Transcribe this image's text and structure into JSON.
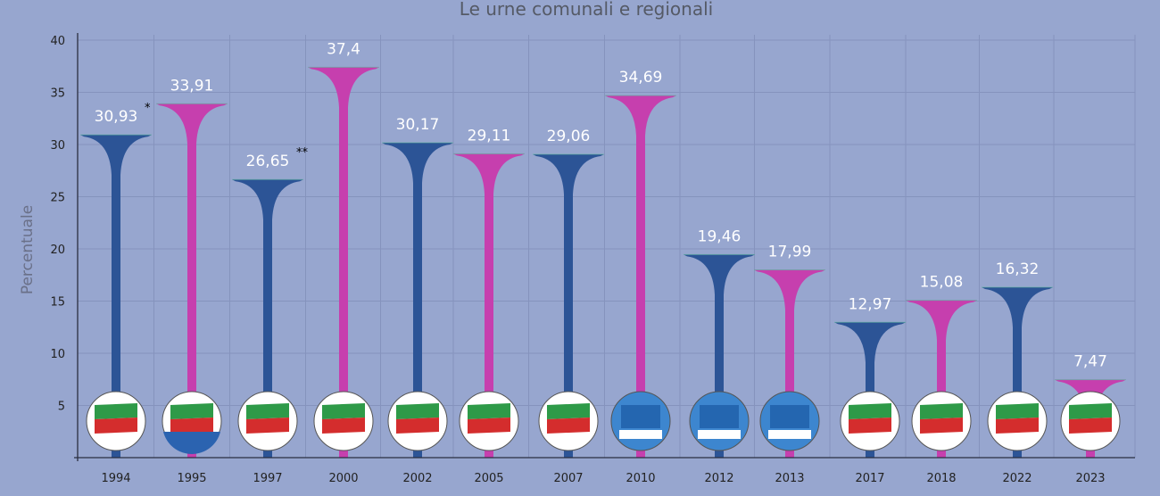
{
  "chart_data": {
    "type": "bar",
    "title": "Le urne comunali e regionali",
    "ylabel": "Percentuale",
    "xlabel": "",
    "ylim": [
      0,
      40
    ],
    "yticks": [
      5,
      10,
      15,
      20,
      25,
      30,
      35,
      40
    ],
    "grid": true,
    "categories": [
      "1994",
      "1995",
      "1997",
      "2000",
      "2002",
      "2005",
      "2007",
      "2010",
      "2012",
      "2013",
      "2017",
      "2018",
      "2022",
      "2023"
    ],
    "values": [
      30.93,
      33.91,
      26.65,
      37.4,
      30.17,
      29.11,
      29.06,
      34.69,
      19.46,
      17.99,
      12.97,
      15.08,
      16.32,
      7.47
    ],
    "labels": [
      "30,93",
      "33,91",
      "26,65",
      "37,4",
      "30,17",
      "29,11",
      "29,06",
      "34,69",
      "19,46",
      "17,99",
      "12,97",
      "15,08",
      "16,32",
      "7,47"
    ],
    "annotations": [
      "*",
      "",
      "**",
      "",
      "",
      "",
      "",
      "",
      "",
      "",
      "",
      "",
      "",
      ""
    ],
    "bar_colors": [
      "#2c5496",
      "#c63fae",
      "#2c5496",
      "#c63fae",
      "#2c5496",
      "#c63fae",
      "#2c5496",
      "#c63fae",
      "#2c5496",
      "#c63fae",
      "#2c5496",
      "#c63fae",
      "#2c5496",
      "#c63fae"
    ],
    "logos": [
      "forza-italia",
      "forza-italia-polo",
      "forza-italia",
      "forza-italia",
      "forza-italia",
      "forza-italia",
      "forza-italia",
      "popolo-della-liberta",
      "popolo-della-liberta",
      "popolo-della-liberta",
      "forza-italia-berlusconi",
      "forza-italia-berlusconi-fontana",
      "forza-italia-berlusconi",
      "forza-italia-berlusconi-fontana"
    ],
    "logo_text": {
      "forza-italia": "FORZA ITALIA",
      "forza-italia-polo": "FORZA ITALIA IL POLO Popolare",
      "popolo-della-liberta": "IL POPOLO DELLA LIBERTÀ BERLUSCONI",
      "forza-italia-berlusconi": "FORZA ITALIA BERLUSCONI",
      "forza-italia-berlusconi-fontana": "FORZA ITALIA BERLUSCONI FONTANA"
    }
  }
}
